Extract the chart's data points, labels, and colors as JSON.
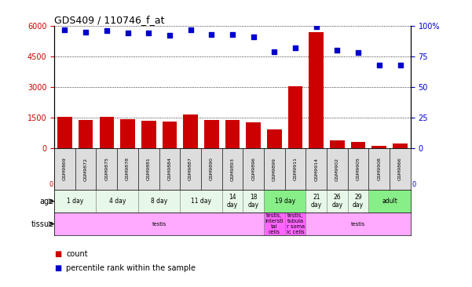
{
  "title": "GDS409 / 110746_f_at",
  "samples": [
    "GSM9869",
    "GSM9872",
    "GSM9875",
    "GSM9878",
    "GSM9881",
    "GSM9884",
    "GSM9887",
    "GSM9890",
    "GSM9893",
    "GSM9896",
    "GSM9899",
    "GSM9911",
    "GSM9914",
    "GSM9902",
    "GSM9905",
    "GSM9908",
    "GSM9866"
  ],
  "counts": [
    1550,
    1380,
    1520,
    1420,
    1350,
    1320,
    1650,
    1370,
    1380,
    1250,
    900,
    3050,
    5700,
    390,
    290,
    100,
    230
  ],
  "percentiles": [
    97,
    95,
    96,
    94,
    94,
    92,
    97,
    93,
    93,
    91,
    79,
    82,
    99,
    80,
    78,
    68,
    68
  ],
  "bar_color": "#cc0000",
  "dot_color": "#0000cc",
  "ylim_left": [
    0,
    6000
  ],
  "ylim_right": [
    0,
    100
  ],
  "yticks_left": [
    0,
    1500,
    3000,
    4500,
    6000
  ],
  "yticks_right": [
    0,
    25,
    50,
    75,
    100
  ],
  "age_groups": [
    {
      "label": "1 day",
      "start": 0,
      "end": 2,
      "color": "#e8f8e8"
    },
    {
      "label": "4 day",
      "start": 2,
      "end": 4,
      "color": "#e8f8e8"
    },
    {
      "label": "8 day",
      "start": 4,
      "end": 6,
      "color": "#e8f8e8"
    },
    {
      "label": "11 day",
      "start": 6,
      "end": 8,
      "color": "#e8f8e8"
    },
    {
      "label": "14\nday",
      "start": 8,
      "end": 9,
      "color": "#e8f8e8"
    },
    {
      "label": "18\nday",
      "start": 9,
      "end": 10,
      "color": "#e8f8e8"
    },
    {
      "label": "19 day",
      "start": 10,
      "end": 12,
      "color": "#88ee88"
    },
    {
      "label": "21\nday",
      "start": 12,
      "end": 13,
      "color": "#e8f8e8"
    },
    {
      "label": "26\nday",
      "start": 13,
      "end": 14,
      "color": "#e8f8e8"
    },
    {
      "label": "29\nday",
      "start": 14,
      "end": 15,
      "color": "#e8f8e8"
    },
    {
      "label": "adult",
      "start": 15,
      "end": 17,
      "color": "#88ee88"
    }
  ],
  "tissue_groups": [
    {
      "label": "testis",
      "start": 0,
      "end": 10,
      "color": "#ffaaff"
    },
    {
      "label": "testis,\nintersti\ntal\ncells",
      "start": 10,
      "end": 11,
      "color": "#ff66ff"
    },
    {
      "label": "testis,\ntubula\nr soma\nic cells",
      "start": 11,
      "end": 12,
      "color": "#ff66ff"
    },
    {
      "label": "testis",
      "start": 12,
      "end": 17,
      "color": "#ffaaff"
    }
  ],
  "background_color": "#ffffff",
  "tick_label_color_left": "#cc0000",
  "tick_label_color_right": "#0000cc",
  "label_box_color": "#dddddd"
}
